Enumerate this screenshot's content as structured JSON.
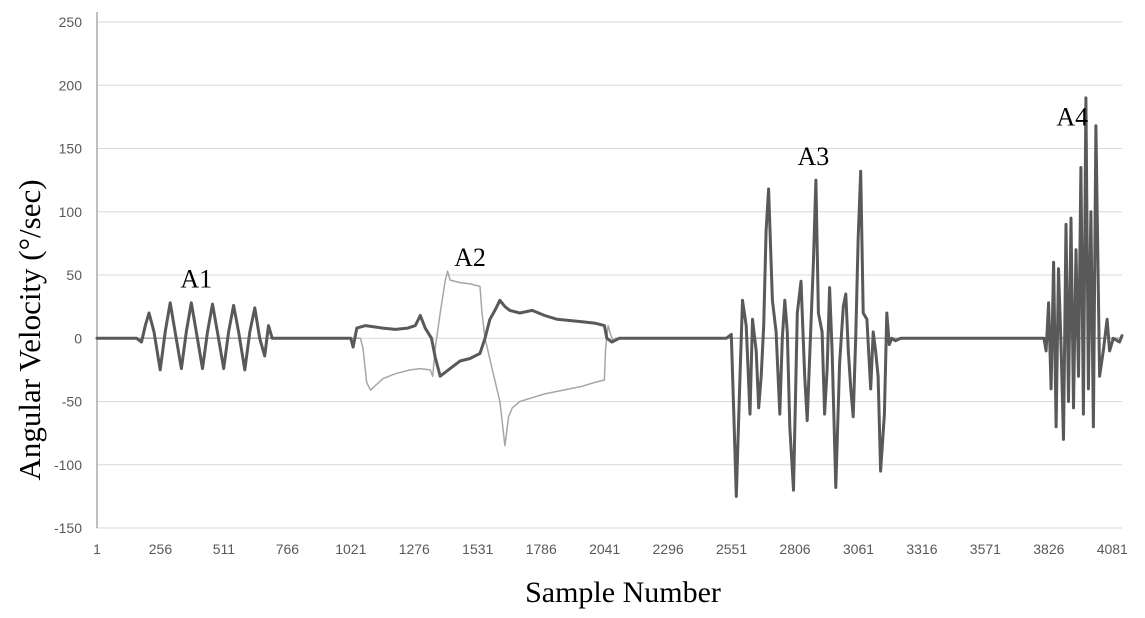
{
  "chart_data": {
    "type": "line",
    "title": "",
    "xlabel": "Sample Number",
    "ylabel": "Angular Velocity (°/sec)",
    "xlim": [
      1,
      4120
    ],
    "ylim": [
      -150,
      250
    ],
    "x_ticks": [
      1,
      256,
      511,
      766,
      1021,
      1276,
      1531,
      1786,
      2041,
      2296,
      2551,
      2806,
      3061,
      3316,
      3571,
      3826,
      4081
    ],
    "y_ticks": [
      -150,
      -100,
      -50,
      0,
      50,
      100,
      150,
      200,
      250
    ],
    "grid": "horizontal",
    "legend": "none",
    "colors": {
      "dark": "#595959",
      "light": "#a6a6a6",
      "grid": "#d9d9d9",
      "axis": "#7f7f7f"
    },
    "annotations": [
      {
        "text": "A1",
        "x": 400,
        "y": 40
      },
      {
        "text": "A2",
        "x": 1500,
        "y": 57
      },
      {
        "text": "A3",
        "x": 2880,
        "y": 137
      },
      {
        "text": "A4",
        "x": 3920,
        "y": 168
      }
    ],
    "series": [
      {
        "color": "#a6a6a6",
        "width": 1.5,
        "points": [
          [
            1,
            0
          ],
          [
            1060,
            0
          ],
          [
            1070,
            -8
          ],
          [
            1085,
            -35
          ],
          [
            1100,
            -41
          ],
          [
            1150,
            -32
          ],
          [
            1200,
            -28
          ],
          [
            1260,
            -25
          ],
          [
            1300,
            -24
          ],
          [
            1340,
            -25
          ],
          [
            1350,
            -30
          ],
          [
            1360,
            -8
          ],
          [
            1380,
            20
          ],
          [
            1400,
            45
          ],
          [
            1410,
            53
          ],
          [
            1420,
            46
          ],
          [
            1460,
            44
          ],
          [
            1500,
            43
          ],
          [
            1540,
            41
          ],
          [
            1548,
            20
          ],
          [
            1560,
            0
          ],
          [
            1590,
            -25
          ],
          [
            1620,
            -50
          ],
          [
            1640,
            -85
          ],
          [
            1655,
            -62
          ],
          [
            1670,
            -55
          ],
          [
            1700,
            -50
          ],
          [
            1750,
            -47
          ],
          [
            1800,
            -44
          ],
          [
            1850,
            -42
          ],
          [
            1900,
            -40
          ],
          [
            1950,
            -38
          ],
          [
            2000,
            -35
          ],
          [
            2040,
            -33
          ],
          [
            2045,
            -8
          ],
          [
            2055,
            10
          ],
          [
            2065,
            3
          ],
          [
            2075,
            -2
          ],
          [
            2085,
            0
          ],
          [
            4120,
            0
          ]
        ]
      },
      {
        "color": "#595959",
        "width": 3,
        "points": [
          [
            1,
            0
          ],
          [
            160,
            0
          ],
          [
            180,
            -3
          ],
          [
            195,
            10
          ],
          [
            210,
            20
          ],
          [
            230,
            5
          ],
          [
            255,
            -25
          ],
          [
            275,
            5
          ],
          [
            295,
            28
          ],
          [
            315,
            5
          ],
          [
            340,
            -24
          ],
          [
            360,
            5
          ],
          [
            380,
            28
          ],
          [
            400,
            5
          ],
          [
            425,
            -24
          ],
          [
            445,
            5
          ],
          [
            465,
            27
          ],
          [
            485,
            5
          ],
          [
            510,
            -24
          ],
          [
            530,
            5
          ],
          [
            550,
            26
          ],
          [
            570,
            5
          ],
          [
            595,
            -25
          ],
          [
            615,
            5
          ],
          [
            635,
            24
          ],
          [
            655,
            0
          ],
          [
            675,
            -14
          ],
          [
            690,
            10
          ],
          [
            705,
            0
          ],
          [
            760,
            0
          ],
          [
            1021,
            0
          ],
          [
            1030,
            -7
          ],
          [
            1045,
            8
          ],
          [
            1080,
            10
          ],
          [
            1150,
            8
          ],
          [
            1200,
            7
          ],
          [
            1250,
            8
          ],
          [
            1280,
            10
          ],
          [
            1300,
            18
          ],
          [
            1320,
            8
          ],
          [
            1345,
            0
          ],
          [
            1360,
            -15
          ],
          [
            1380,
            -30
          ],
          [
            1420,
            -24
          ],
          [
            1460,
            -18
          ],
          [
            1500,
            -16
          ],
          [
            1540,
            -12
          ],
          [
            1560,
            0
          ],
          [
            1580,
            15
          ],
          [
            1600,
            22
          ],
          [
            1620,
            30
          ],
          [
            1640,
            25
          ],
          [
            1660,
            22
          ],
          [
            1700,
            20
          ],
          [
            1750,
            22
          ],
          [
            1800,
            18
          ],
          [
            1850,
            15
          ],
          [
            1900,
            14
          ],
          [
            1950,
            13
          ],
          [
            2000,
            12
          ],
          [
            2040,
            10
          ],
          [
            2050,
            0
          ],
          [
            2070,
            -3
          ],
          [
            2100,
            0
          ],
          [
            2530,
            0
          ],
          [
            2550,
            3
          ],
          [
            2560,
            -60
          ],
          [
            2570,
            -125
          ],
          [
            2585,
            -30
          ],
          [
            2595,
            30
          ],
          [
            2610,
            10
          ],
          [
            2625,
            -60
          ],
          [
            2635,
            15
          ],
          [
            2650,
            -10
          ],
          [
            2660,
            -55
          ],
          [
            2670,
            -30
          ],
          [
            2680,
            10
          ],
          [
            2690,
            85
          ],
          [
            2700,
            118
          ],
          [
            2715,
            30
          ],
          [
            2730,
            5
          ],
          [
            2745,
            -60
          ],
          [
            2755,
            0
          ],
          [
            2765,
            30
          ],
          [
            2775,
            5
          ],
          [
            2785,
            -70
          ],
          [
            2800,
            -120
          ],
          [
            2815,
            20
          ],
          [
            2830,
            45
          ],
          [
            2845,
            -30
          ],
          [
            2855,
            -65
          ],
          [
            2870,
            10
          ],
          [
            2880,
            60
          ],
          [
            2890,
            125
          ],
          [
            2900,
            20
          ],
          [
            2915,
            5
          ],
          [
            2925,
            -60
          ],
          [
            2935,
            -25
          ],
          [
            2945,
            40
          ],
          [
            2955,
            -10
          ],
          [
            2970,
            -118
          ],
          [
            2985,
            -20
          ],
          [
            3000,
            25
          ],
          [
            3010,
            35
          ],
          [
            3020,
            -10
          ],
          [
            3030,
            -40
          ],
          [
            3040,
            -62
          ],
          [
            3050,
            0
          ],
          [
            3060,
            80
          ],
          [
            3070,
            132
          ],
          [
            3080,
            20
          ],
          [
            3095,
            15
          ],
          [
            3110,
            -40
          ],
          [
            3120,
            5
          ],
          [
            3130,
            -10
          ],
          [
            3140,
            -30
          ],
          [
            3150,
            -105
          ],
          [
            3165,
            -60
          ],
          [
            3175,
            20
          ],
          [
            3185,
            -5
          ],
          [
            3195,
            0
          ],
          [
            3210,
            -2
          ],
          [
            3230,
            0
          ],
          [
            3500,
            0
          ],
          [
            3806,
            0
          ],
          [
            3815,
            -10
          ],
          [
            3825,
            28
          ],
          [
            3835,
            -40
          ],
          [
            3845,
            60
          ],
          [
            3855,
            -70
          ],
          [
            3865,
            55
          ],
          [
            3875,
            -5
          ],
          [
            3885,
            -80
          ],
          [
            3895,
            90
          ],
          [
            3905,
            -50
          ],
          [
            3915,
            95
          ],
          [
            3925,
            -55
          ],
          [
            3935,
            70
          ],
          [
            3945,
            -30
          ],
          [
            3955,
            135
          ],
          [
            3965,
            -60
          ],
          [
            3975,
            190
          ],
          [
            3985,
            -40
          ],
          [
            3995,
            100
          ],
          [
            4005,
            -70
          ],
          [
            4015,
            168
          ],
          [
            4030,
            -30
          ],
          [
            4045,
            -10
          ],
          [
            4060,
            15
          ],
          [
            4070,
            -10
          ],
          [
            4085,
            0
          ],
          [
            4110,
            -3
          ],
          [
            4120,
            2
          ]
        ]
      }
    ]
  }
}
